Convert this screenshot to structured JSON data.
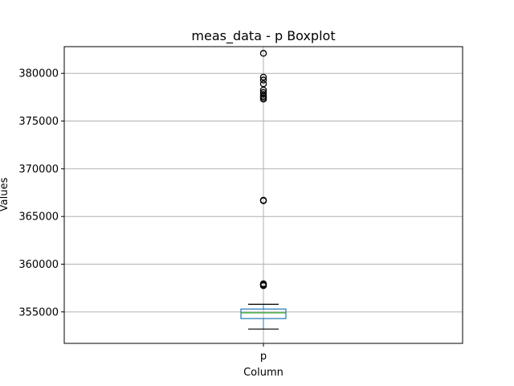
{
  "chart_data": {
    "type": "boxplot",
    "title": "meas_data - p Boxplot",
    "xlabel": "Column",
    "ylabel": "Values",
    "categories": [
      "p"
    ],
    "ylim": [
      351700,
      382800
    ],
    "yticks": [
      355000,
      360000,
      365000,
      370000,
      375000,
      380000
    ],
    "grid": true,
    "colors": {
      "box": "#1f77b4",
      "median": "#2ca02c",
      "whisker": "#000000",
      "grid": "#b0b0b0"
    },
    "boxes": [
      {
        "name": "p",
        "whisker_low": 353200,
        "q1": 354300,
        "median": 354900,
        "q3": 355300,
        "whisker_high": 355800,
        "outliers": [
          357750,
          357850,
          357950,
          366650,
          366700,
          377300,
          377450,
          377600,
          377800,
          378000,
          378250,
          378900,
          379300,
          379600,
          382100
        ]
      }
    ]
  }
}
